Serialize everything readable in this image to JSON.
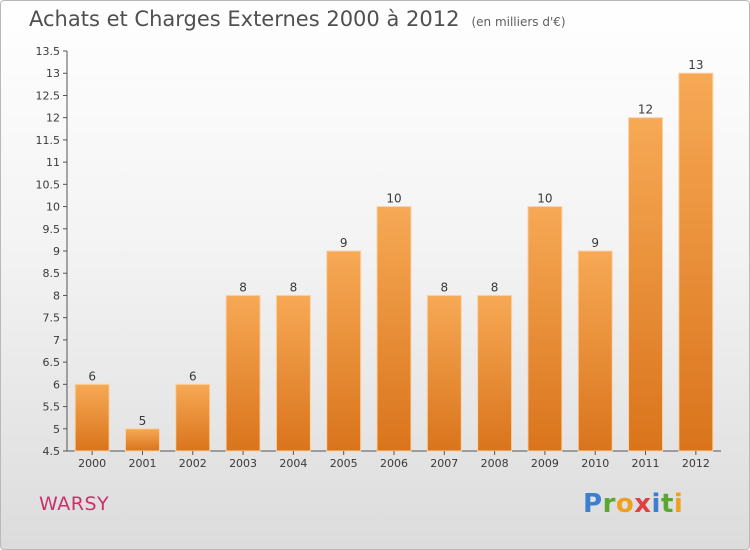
{
  "title": "Achats et Charges Externes 2000 à 2012",
  "subtitle": "(en milliers d'€)",
  "commune": "WARSY",
  "logo": {
    "letters": [
      "P",
      "r",
      "o",
      "x",
      "i",
      "t",
      "i"
    ],
    "colors": [
      "#3b7fd0",
      "#5aa832",
      "#f0a020",
      "#e04040",
      "#3b7fd0",
      "#5aa832",
      "#f0a020"
    ]
  },
  "colors": {
    "bar_top": "#f7a955",
    "bar_bottom": "#d9741c",
    "axis": "#555555"
  },
  "chart_data": {
    "type": "bar",
    "title": "Achats et Charges Externes 2000 à 2012",
    "subtitle": "(en milliers d'€)",
    "categories": [
      "2000",
      "2001",
      "2002",
      "2003",
      "2004",
      "2005",
      "2006",
      "2007",
      "2008",
      "2009",
      "2010",
      "2011",
      "2012"
    ],
    "values": [
      6,
      5,
      6,
      8,
      8,
      9,
      10,
      8,
      8,
      10,
      9,
      12,
      13
    ],
    "ylim": [
      4.5,
      13.5
    ],
    "yticks": [
      "4.5",
      "5",
      "5.5",
      "6",
      "6.5",
      "7",
      "7.5",
      "8",
      "8.5",
      "9",
      "9.5",
      "10",
      "10.5",
      "11",
      "11.5",
      "12",
      "12.5",
      "13",
      "13.5"
    ],
    "grid": false,
    "legend": "none"
  }
}
